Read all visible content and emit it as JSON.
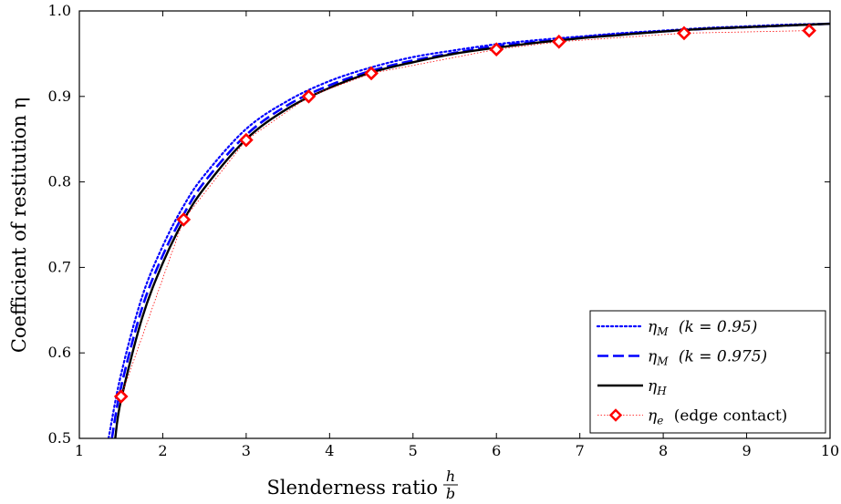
{
  "chart_data": {
    "type": "line",
    "title": "",
    "xlabel": "Slenderness ratio",
    "xlabel_fraction": {
      "numerator": "h",
      "denominator": "b"
    },
    "ylabel": "Coefficient of restitution η",
    "xlim": [
      1,
      10
    ],
    "ylim": [
      0.5,
      1.0
    ],
    "x_ticks": [
      "1",
      "2",
      "3",
      "4",
      "5",
      "6",
      "7",
      "8",
      "9",
      "10"
    ],
    "y_ticks": [
      "0.5",
      "0.6",
      "0.7",
      "0.8",
      "0.9",
      "1.0"
    ],
    "grid": false,
    "legend_position": "bottom-right",
    "series": [
      {
        "name": "ηM (k = 0.95)",
        "legend": {
          "sym": "η",
          "sub": "M",
          "rest": "(k = 0.95)"
        },
        "color": "#0000ff",
        "style": "dotted",
        "x": [
          1.35,
          1.5,
          1.75,
          2.0,
          2.25,
          2.5,
          3.0,
          3.5,
          4.0,
          4.5,
          5.0,
          5.5,
          6.0,
          6.5,
          7.0,
          7.5,
          8.0,
          8.5,
          9.0,
          9.5,
          10.0
        ],
        "y": [
          0.5,
          0.575,
          0.665,
          0.725,
          0.772,
          0.808,
          0.862,
          0.895,
          0.918,
          0.934,
          0.946,
          0.954,
          0.961,
          0.966,
          0.97,
          0.974,
          0.977,
          0.98,
          0.982,
          0.984,
          0.985
        ]
      },
      {
        "name": "ηM (k = 0.975)",
        "legend": {
          "sym": "η",
          "sub": "M",
          "rest": "(k = 0.975)"
        },
        "color": "#0000ff",
        "style": "dashed",
        "x": [
          1.39,
          1.5,
          1.75,
          2.0,
          2.25,
          2.5,
          3.0,
          3.5,
          4.0,
          4.5,
          5.0,
          5.5,
          6.0,
          6.5,
          7.0,
          7.5,
          8.0,
          8.5,
          9.0,
          9.5,
          10.0
        ],
        "y": [
          0.5,
          0.56,
          0.652,
          0.714,
          0.762,
          0.8,
          0.855,
          0.89,
          0.913,
          0.93,
          0.942,
          0.951,
          0.959,
          0.964,
          0.969,
          0.973,
          0.976,
          0.979,
          0.981,
          0.983,
          0.985
        ]
      },
      {
        "name": "ηH",
        "legend": {
          "sym": "η",
          "sub": "H",
          "rest": ""
        },
        "color": "#000000",
        "style": "solid",
        "x": [
          1.43,
          1.5,
          1.75,
          2.0,
          2.25,
          2.5,
          3.0,
          3.5,
          4.0,
          4.5,
          5.0,
          5.5,
          6.0,
          6.5,
          7.0,
          7.5,
          8.0,
          8.5,
          9.0,
          9.5,
          10.0
        ],
        "y": [
          0.5,
          0.545,
          0.64,
          0.705,
          0.755,
          0.793,
          0.85,
          0.886,
          0.91,
          0.928,
          0.94,
          0.95,
          0.957,
          0.963,
          0.968,
          0.972,
          0.976,
          0.979,
          0.981,
          0.983,
          0.985
        ]
      },
      {
        "name": "ηe (edge contact)",
        "legend": {
          "sym": "η",
          "sub": "e",
          "rest": "(edge contact)"
        },
        "color": "#ff0000",
        "style": "markers-with-thin-dotted-line",
        "marker": "diamond",
        "x": [
          1.5,
          2.25,
          3.0,
          3.75,
          4.5,
          6.0,
          6.75,
          8.25,
          9.75
        ],
        "y": [
          0.549,
          0.756,
          0.849,
          0.9,
          0.927,
          0.955,
          0.964,
          0.974,
          0.977
        ]
      }
    ]
  }
}
